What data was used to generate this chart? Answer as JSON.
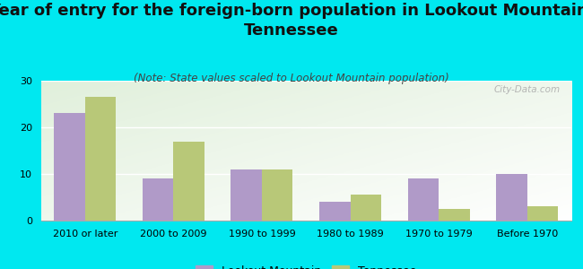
{
  "title": "Year of entry for the foreign-born population in Lookout Mountain,\nTennessee",
  "subtitle": "(Note: State values scaled to Lookout Mountain population)",
  "categories": [
    "2010 or later",
    "2000 to 2009",
    "1990 to 1999",
    "1980 to 1989",
    "1970 to 1979",
    "Before 1970"
  ],
  "lookout_mountain": [
    23,
    9,
    11,
    4,
    9,
    10
  ],
  "tennessee": [
    26.5,
    17,
    11,
    5.5,
    2.5,
    3
  ],
  "bar_color_lookout": "#b09ac8",
  "bar_color_tennessee": "#b8c878",
  "background_color": "#00e8f0",
  "plot_bg_color": "#e8f0dc",
  "ylim": [
    0,
    30
  ],
  "yticks": [
    0,
    10,
    20,
    30
  ],
  "watermark": "City-Data.com",
  "legend_lookout": "Lookout Mountain",
  "legend_tennessee": "Tennessee",
  "title_fontsize": 13,
  "subtitle_fontsize": 8.5,
  "tick_fontsize": 8,
  "bar_width": 0.35
}
